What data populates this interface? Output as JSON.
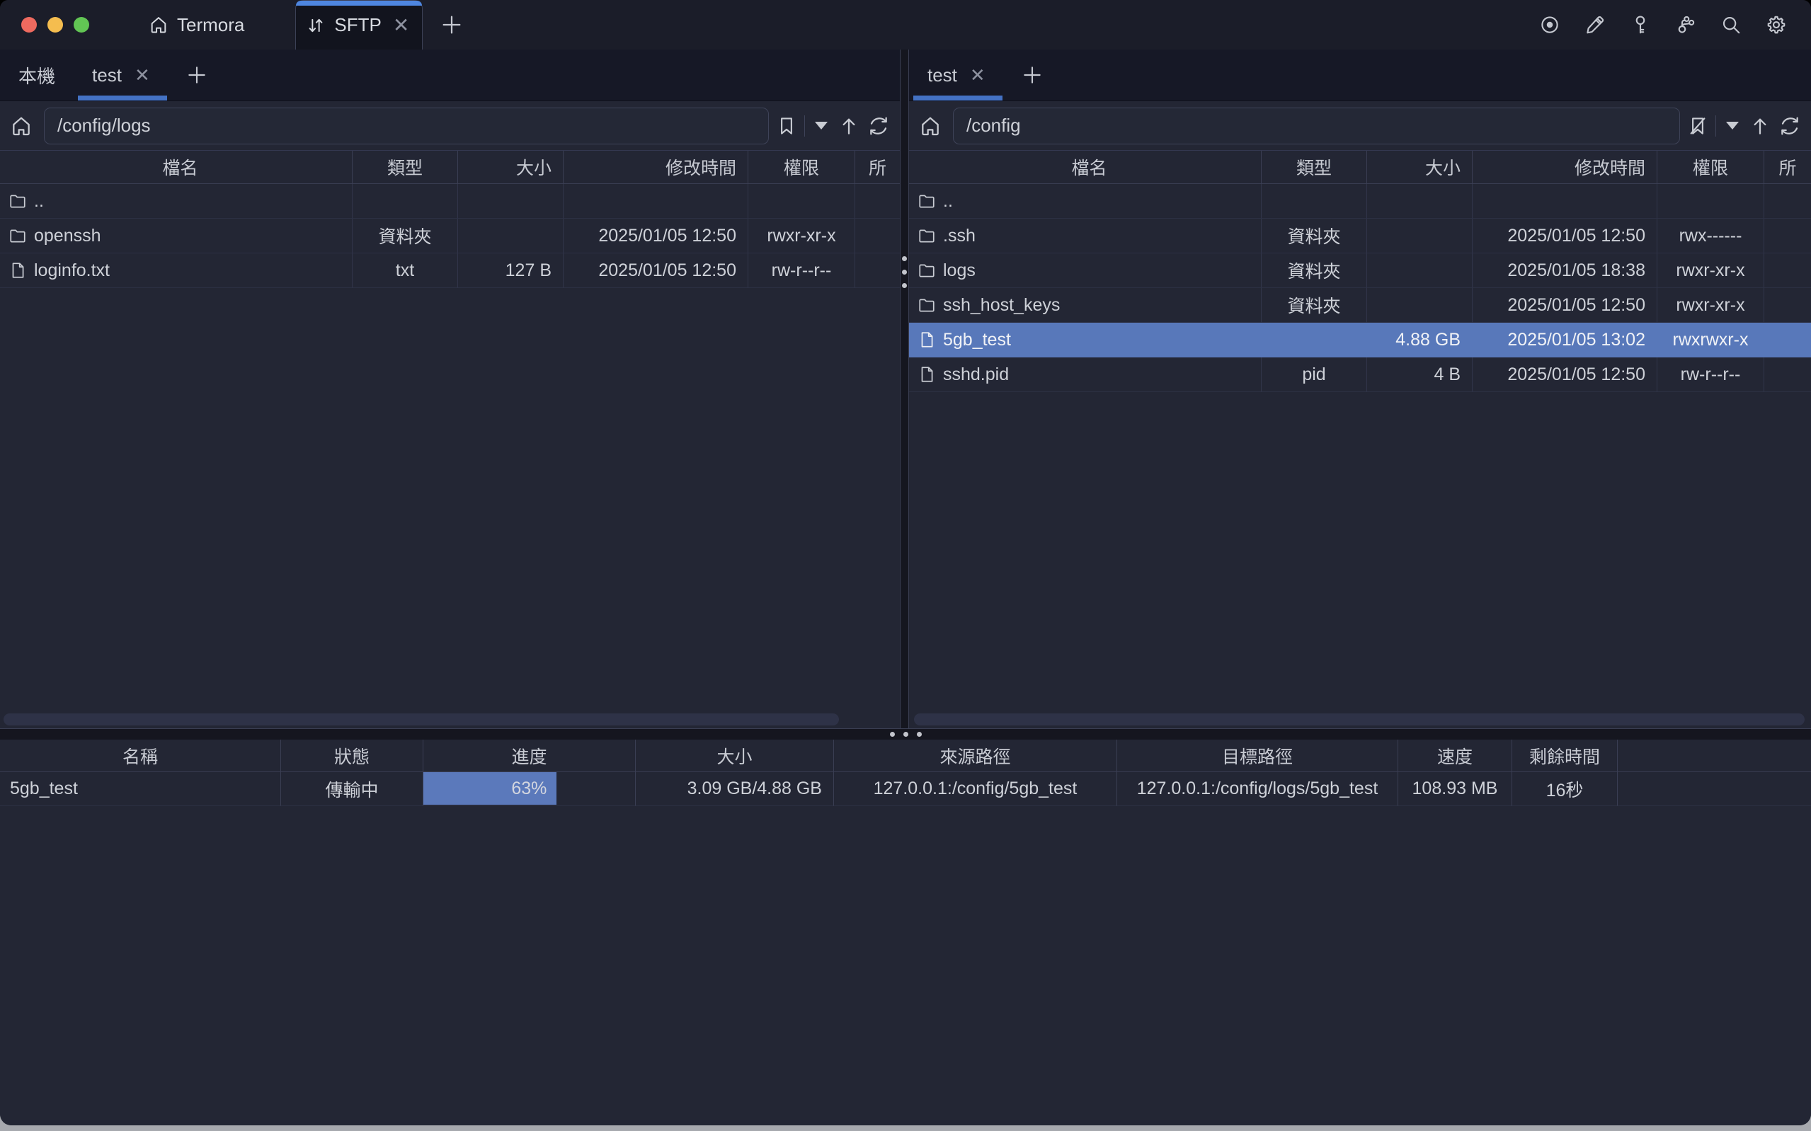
{
  "titlebar": {
    "app_tab_label": "Termora",
    "sftp_tab_label": "SFTP",
    "traffic_lights": [
      "close",
      "minimize",
      "zoom"
    ],
    "action_icons": [
      "record",
      "edit",
      "key",
      "branch",
      "search",
      "settings"
    ]
  },
  "colors": {
    "accent_blue": "#4e86e0",
    "tab_underline": "#4472c4",
    "selection_blue": "#5878ba",
    "progress_blue": "#5b79bb",
    "pane_bg": "#232634",
    "titlebar_bg": "#1b1d29"
  },
  "left_pane": {
    "tabs": [
      {
        "label": "本機",
        "closable": false,
        "active": false
      },
      {
        "label": "test",
        "closable": true,
        "active": true
      }
    ],
    "path": "/config/logs",
    "columns": [
      "檔名",
      "類型",
      "大小",
      "修改時間",
      "權限",
      "所"
    ],
    "files": [
      {
        "name": "..",
        "icon": "folder",
        "type": "",
        "size": "",
        "mtime": "",
        "perm": "",
        "selected": false
      },
      {
        "name": "openssh",
        "icon": "folder",
        "type": "資料夾",
        "size": "",
        "mtime": "2025/01/05 12:50",
        "perm": "rwxr-xr-x",
        "selected": false
      },
      {
        "name": "loginfo.txt",
        "icon": "file",
        "type": "txt",
        "size": "127 B",
        "mtime": "2025/01/05 12:50",
        "perm": "rw-r--r--",
        "selected": false
      }
    ]
  },
  "right_pane": {
    "tabs": [
      {
        "label": "test",
        "closable": true,
        "active": true
      }
    ],
    "path": "/config",
    "columns": [
      "檔名",
      "類型",
      "大小",
      "修改時間",
      "權限",
      "所"
    ],
    "files": [
      {
        "name": "..",
        "icon": "folder",
        "type": "",
        "size": "",
        "mtime": "",
        "perm": "",
        "selected": false
      },
      {
        "name": ".ssh",
        "icon": "folder",
        "type": "資料夾",
        "size": "",
        "mtime": "2025/01/05 12:50",
        "perm": "rwx------",
        "selected": false
      },
      {
        "name": "logs",
        "icon": "folder",
        "type": "資料夾",
        "size": "",
        "mtime": "2025/01/05 18:38",
        "perm": "rwxr-xr-x",
        "selected": false
      },
      {
        "name": "ssh_host_keys",
        "icon": "folder",
        "type": "資料夾",
        "size": "",
        "mtime": "2025/01/05 12:50",
        "perm": "rwxr-xr-x",
        "selected": false
      },
      {
        "name": "5gb_test",
        "icon": "file",
        "type": "",
        "size": "4.88 GB",
        "mtime": "2025/01/05 13:02",
        "perm": "rwxrwxr-x",
        "selected": true
      },
      {
        "name": "sshd.pid",
        "icon": "file",
        "type": "pid",
        "size": "4 B",
        "mtime": "2025/01/05 12:50",
        "perm": "rw-r--r--",
        "selected": false
      }
    ]
  },
  "transfers": {
    "columns": [
      "名稱",
      "狀態",
      "進度",
      "大小",
      "來源路徑",
      "目標路徑",
      "速度",
      "剩餘時間"
    ],
    "rows": [
      {
        "name": "5gb_test",
        "status": "傳輸中",
        "progress_percent": 63,
        "progress_label": "63%",
        "size": "3.09 GB/4.88 GB",
        "source": "127.0.0.1:/config/5gb_test",
        "target": "127.0.0.1:/config/logs/5gb_test",
        "speed": "108.93 MB",
        "eta": "16秒"
      }
    ]
  }
}
